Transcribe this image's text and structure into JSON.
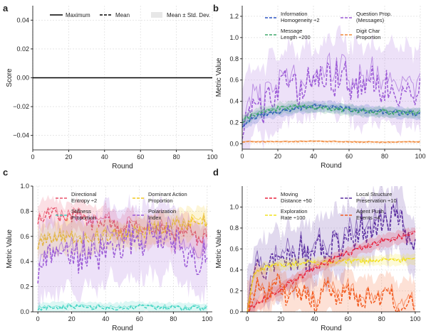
{
  "figure": {
    "panel_letters": [
      "a",
      "b",
      "c",
      "d"
    ]
  },
  "chart_data": [
    {
      "panel": "a",
      "type": "line",
      "xlabel": "Round",
      "ylabel": "Score",
      "xlim": [
        0,
        100
      ],
      "ylim": [
        -0.05,
        0.05
      ],
      "xticks": [
        0,
        20,
        40,
        60,
        80,
        100
      ],
      "yticks": [
        -0.04,
        -0.02,
        0.0,
        0.02,
        0.04
      ],
      "ytick_labels": [
        "−0.04",
        "−0.02",
        "0.00",
        "0.02",
        "0.04"
      ],
      "grid": true,
      "legend_placement": "top",
      "legend": [
        {
          "label": "Maximum",
          "style": "solid"
        },
        {
          "label": "Mean",
          "style": "dashed"
        },
        {
          "label": "Mean ± Std. Dev.",
          "style": "band"
        }
      ],
      "series": [
        {
          "kind": "max",
          "color": "#000000",
          "x": [
            0,
            100
          ],
          "values": [
            0,
            0
          ]
        }
      ]
    },
    {
      "panel": "b",
      "type": "line",
      "xlabel": "Round",
      "ylabel": "Metric Value",
      "xlim": [
        0,
        100
      ],
      "ylim": [
        -0.05,
        1.3
      ],
      "xticks": [
        0,
        20,
        40,
        60,
        80,
        100
      ],
      "yticks": [
        0.0,
        0.2,
        0.4,
        0.6,
        0.8,
        1.0,
        1.2
      ],
      "grid": true,
      "legend_placement": "top",
      "legend": [
        {
          "label": "Information Homogeneity ÷2",
          "lines": [
            "Information",
            "Homogeneity ÷2"
          ],
          "color": "#2b54c4"
        },
        {
          "label": "Question Prop. (Messages)",
          "lines": [
            "Question Prop.",
            "(Messages)"
          ],
          "color": "#9b59d6"
        },
        {
          "label": "Message Length ÷200",
          "lines": [
            "Message",
            "Length ÷200"
          ],
          "color": "#3fa86a"
        },
        {
          "label": "Digit Char Proportion",
          "lines": [
            "Digit Char",
            "Proportion"
          ],
          "color": "#f08a3c"
        }
      ],
      "series": [
        {
          "color": "#9b59d6",
          "band": 0.35,
          "anchors": [
            [
              0,
              0.2
            ],
            [
              4,
              0.33
            ],
            [
              8,
              0.45
            ],
            [
              12,
              0.35
            ],
            [
              16,
              0.5
            ],
            [
              20,
              0.44
            ],
            [
              24,
              0.55
            ],
            [
              28,
              0.6
            ],
            [
              32,
              0.5
            ],
            [
              36,
              0.62
            ],
            [
              40,
              0.55
            ],
            [
              44,
              0.6
            ],
            [
              48,
              0.7
            ],
            [
              52,
              0.6
            ],
            [
              56,
              0.72
            ],
            [
              60,
              0.55
            ],
            [
              64,
              0.58
            ],
            [
              68,
              0.5
            ],
            [
              72,
              0.62
            ],
            [
              76,
              0.52
            ],
            [
              80,
              0.56
            ],
            [
              84,
              0.6
            ],
            [
              88,
              0.48
            ],
            [
              92,
              0.58
            ],
            [
              96,
              0.5
            ],
            [
              100,
              0.55
            ]
          ]
        },
        {
          "color": "#2b54c4",
          "band": 0.05,
          "anchors": [
            [
              0,
              0.18
            ],
            [
              10,
              0.27
            ],
            [
              20,
              0.3
            ],
            [
              30,
              0.33
            ],
            [
              40,
              0.35
            ],
            [
              50,
              0.35
            ],
            [
              60,
              0.32
            ],
            [
              70,
              0.31
            ],
            [
              80,
              0.3
            ],
            [
              90,
              0.29
            ],
            [
              100,
              0.28
            ]
          ]
        },
        {
          "color": "#3fa86a",
          "band": 0.05,
          "anchors": [
            [
              0,
              0.22
            ],
            [
              10,
              0.3
            ],
            [
              20,
              0.33
            ],
            [
              30,
              0.35
            ],
            [
              40,
              0.34
            ],
            [
              50,
              0.33
            ],
            [
              60,
              0.32
            ],
            [
              70,
              0.3
            ],
            [
              80,
              0.3
            ],
            [
              90,
              0.29
            ],
            [
              100,
              0.29
            ]
          ]
        },
        {
          "color": "#f08a3c",
          "band": 0.01,
          "anchors": [
            [
              0,
              0.02
            ],
            [
              20,
              0.02
            ],
            [
              40,
              0.025
            ],
            [
              60,
              0.02
            ],
            [
              80,
              0.015
            ],
            [
              100,
              0.02
            ]
          ]
        }
      ]
    },
    {
      "panel": "c",
      "type": "line",
      "xlabel": "Round",
      "ylabel": "Metric Value",
      "xlim": [
        -3,
        103
      ],
      "ylim": [
        0,
        1.0
      ],
      "xticks": [
        0,
        20,
        40,
        60,
        80,
        100
      ],
      "yticks": [
        0.0,
        0.2,
        0.4,
        0.6,
        0.8,
        1.0
      ],
      "grid": true,
      "legend_placement": "top",
      "legend": [
        {
          "label": "Directional Entropy ÷2",
          "lines": [
            "Directional",
            "Entropy ÷2"
          ],
          "color": "#e8506a"
        },
        {
          "label": "Dominant Action Proportion",
          "lines": [
            "Dominant Action",
            "Proportion"
          ],
          "color": "#f2c81e"
        },
        {
          "label": "Stillness Proportion",
          "lines": [
            "Stillness",
            "Proportion"
          ],
          "color": "#3fd4c2"
        },
        {
          "label": "Polarization Index",
          "lines": [
            "Polarization",
            "Index"
          ],
          "color": "#9b59d6"
        }
      ],
      "series": [
        {
          "color": "#e8506a",
          "band": 0.12,
          "anchors": [
            [
              0,
              0.75
            ],
            [
              8,
              0.8
            ],
            [
              16,
              0.72
            ],
            [
              24,
              0.78
            ],
            [
              32,
              0.7
            ],
            [
              40,
              0.74
            ],
            [
              48,
              0.65
            ],
            [
              56,
              0.7
            ],
            [
              64,
              0.62
            ],
            [
              72,
              0.68
            ],
            [
              80,
              0.6
            ],
            [
              88,
              0.66
            ],
            [
              96,
              0.55
            ],
            [
              100,
              0.6
            ]
          ]
        },
        {
          "color": "#f2c81e",
          "band": 0.12,
          "anchors": [
            [
              0,
              0.55
            ],
            [
              10,
              0.58
            ],
            [
              20,
              0.6
            ],
            [
              30,
              0.56
            ],
            [
              40,
              0.62
            ],
            [
              50,
              0.6
            ],
            [
              60,
              0.63
            ],
            [
              70,
              0.66
            ],
            [
              80,
              0.68
            ],
            [
              90,
              0.7
            ],
            [
              100,
              0.72
            ]
          ]
        },
        {
          "color": "#9b59d6",
          "band": 0.28,
          "anchors": [
            [
              0,
              0.35
            ],
            [
              6,
              0.45
            ],
            [
              12,
              0.4
            ],
            [
              18,
              0.48
            ],
            [
              24,
              0.42
            ],
            [
              30,
              0.5
            ],
            [
              36,
              0.45
            ],
            [
              42,
              0.6
            ],
            [
              48,
              0.5
            ],
            [
              54,
              0.58
            ],
            [
              60,
              0.52
            ],
            [
              66,
              0.6
            ],
            [
              72,
              0.55
            ],
            [
              78,
              0.62
            ],
            [
              84,
              0.5
            ],
            [
              90,
              0.45
            ],
            [
              96,
              0.4
            ],
            [
              100,
              0.45
            ]
          ]
        },
        {
          "color": "#3fd4c2",
          "band": 0.04,
          "anchors": [
            [
              0,
              0.03
            ],
            [
              20,
              0.04
            ],
            [
              40,
              0.03
            ],
            [
              60,
              0.04
            ],
            [
              80,
              0.03
            ],
            [
              100,
              0.03
            ]
          ]
        }
      ]
    },
    {
      "panel": "d",
      "type": "line",
      "xlabel": "Round",
      "ylabel": "Metric Value",
      "xlim": [
        -3,
        103
      ],
      "ylim": [
        0,
        1.2
      ],
      "xticks": [
        0,
        20,
        40,
        60,
        80,
        100
      ],
      "yticks": [
        0.0,
        0.2,
        0.4,
        0.6,
        0.8,
        1.0
      ],
      "grid": true,
      "legend_placement": "top",
      "legend": [
        {
          "label": "Moving Distance ÷50",
          "lines": [
            "Moving",
            "Distance ÷50"
          ],
          "color": "#e8233f"
        },
        {
          "label": "Local Structure Preservation ÷10",
          "lines": [
            "Local Structure",
            "Preservation ÷10"
          ],
          "color": "#5a2da0"
        },
        {
          "label": "Exploration Rate ÷100",
          "lines": [
            "Exploration",
            "Rate ÷100"
          ],
          "color": "#f2e21e"
        },
        {
          "label": "Agent Push Events ÷4",
          "lines": [
            "Agent Push",
            "Events ÷4"
          ],
          "color": "#f25a1e"
        }
      ],
      "series": [
        {
          "color": "#5a2da0",
          "band": 0.3,
          "anchors": [
            [
              0,
              0.05
            ],
            [
              4,
              0.3
            ],
            [
              8,
              0.45
            ],
            [
              12,
              0.35
            ],
            [
              16,
              0.5
            ],
            [
              20,
              0.4
            ],
            [
              24,
              0.55
            ],
            [
              28,
              0.45
            ],
            [
              32,
              0.6
            ],
            [
              36,
              0.5
            ],
            [
              40,
              0.55
            ],
            [
              44,
              0.65
            ],
            [
              48,
              0.55
            ],
            [
              52,
              0.7
            ],
            [
              56,
              0.6
            ],
            [
              60,
              0.75
            ],
            [
              64,
              0.7
            ],
            [
              68,
              0.8
            ],
            [
              72,
              0.75
            ],
            [
              76,
              0.85
            ],
            [
              80,
              0.9
            ],
            [
              84,
              0.8
            ],
            [
              88,
              0.95
            ],
            [
              92,
              0.85
            ],
            [
              96,
              0.65
            ],
            [
              100,
              0.6
            ]
          ]
        },
        {
          "color": "#f2e21e",
          "band": 0.05,
          "anchors": [
            [
              0,
              0.02
            ],
            [
              4,
              0.35
            ],
            [
              10,
              0.42
            ],
            [
              20,
              0.45
            ],
            [
              40,
              0.47
            ],
            [
              60,
              0.48
            ],
            [
              80,
              0.49
            ],
            [
              100,
              0.5
            ]
          ]
        },
        {
          "color": "#e8233f",
          "band": 0.06,
          "anchors": [
            [
              0,
              0.0
            ],
            [
              10,
              0.12
            ],
            [
              20,
              0.22
            ],
            [
              30,
              0.32
            ],
            [
              40,
              0.41
            ],
            [
              50,
              0.49
            ],
            [
              60,
              0.56
            ],
            [
              70,
              0.62
            ],
            [
              80,
              0.67
            ],
            [
              90,
              0.71
            ],
            [
              100,
              0.74
            ]
          ]
        },
        {
          "color": "#f25a1e",
          "band": 0.2,
          "anchors": [
            [
              0,
              0.05
            ],
            [
              6,
              0.25
            ],
            [
              12,
              0.15
            ],
            [
              18,
              0.3
            ],
            [
              24,
              0.1
            ],
            [
              30,
              0.2
            ],
            [
              36,
              0.15
            ],
            [
              42,
              0.08
            ],
            [
              48,
              0.25
            ],
            [
              54,
              0.12
            ],
            [
              60,
              0.2
            ],
            [
              66,
              0.08
            ],
            [
              72,
              0.15
            ],
            [
              78,
              0.1
            ],
            [
              84,
              0.18
            ],
            [
              90,
              0.05
            ],
            [
              96,
              0.12
            ],
            [
              100,
              0.08
            ]
          ]
        }
      ]
    }
  ]
}
